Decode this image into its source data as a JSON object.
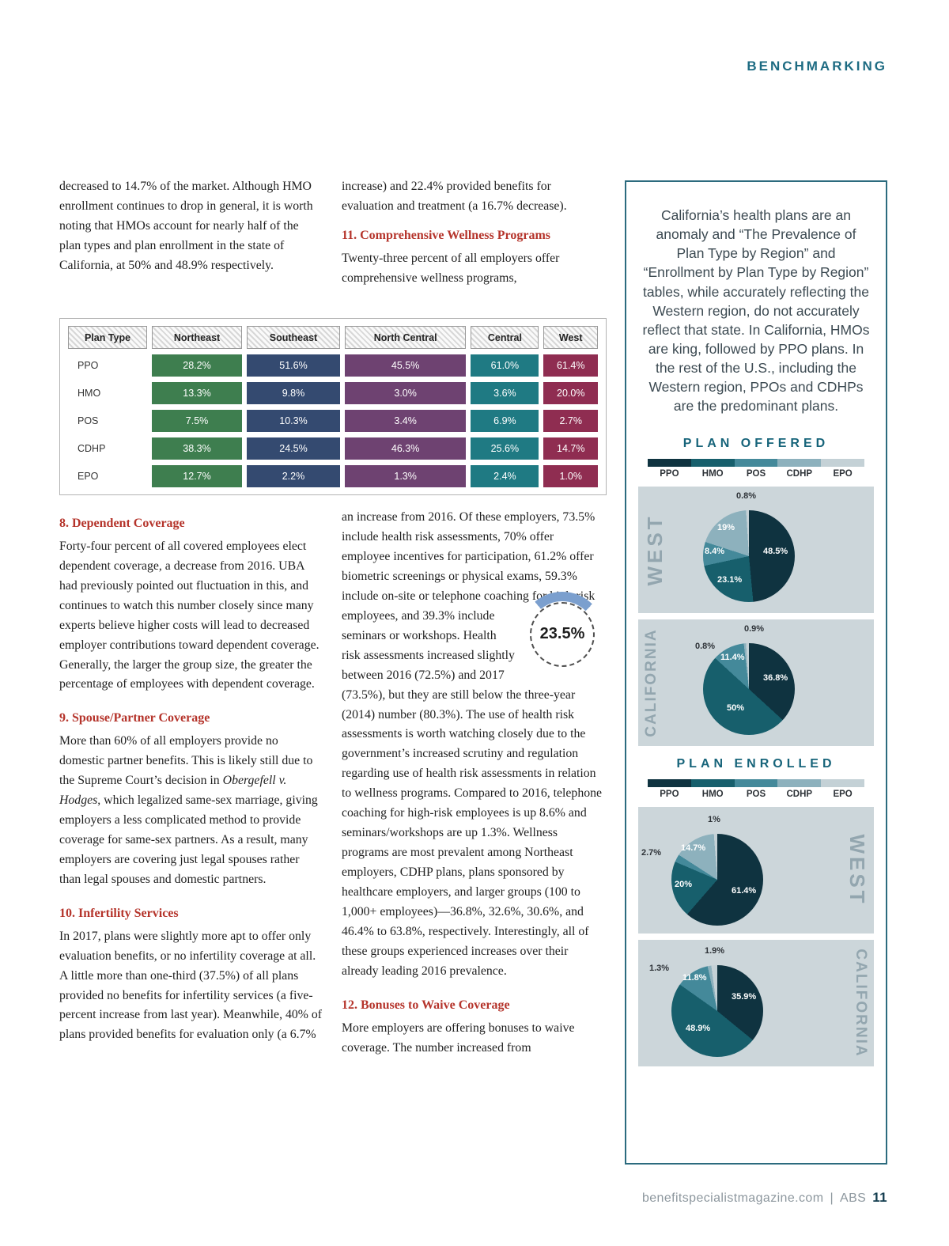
{
  "page": {
    "section_label": "BENCHMARKING",
    "footer": {
      "site": "benefitspecialistmagazine.com",
      "divider": "|",
      "brand": "ABS",
      "page_number": "11"
    }
  },
  "article": {
    "col1": {
      "continuation": "decreased to 14.7% of the market. Although HMO enrollment continues to drop in general, it is worth noting that HMOs account for nearly half of the plan types and plan enrollment in the state of California, at 50% and 48.9% respectively.",
      "section8": {
        "heading": "8. Dependent Coverage",
        "body": "Forty-four percent of all covered employees elect dependent coverage, a decrease from 2016. UBA had previously pointed out fluctuation in this, and continues to watch this number closely since many experts believe higher costs will lead to decreased employer contributions toward dependent coverage. Generally, the larger the group size, the greater the percentage of employees with dependent coverage."
      },
      "section9": {
        "heading": "9. Spouse/Partner Coverage",
        "body_before_italic": "More than 60% of all employers provide no domestic partner benefits. This is likely still due to the Supreme Court’s decision in ",
        "italic": "Obergefell v. Hodges",
        "body_after_italic": ", which legalized same-sex marriage, giving employers a less complicated method to provide coverage for same-sex partners. As a result, many employers are covering just legal spouses rather than legal spouses and domestic partners."
      },
      "section10": {
        "heading": "10. Infertility Services",
        "body": "In 2017, plans were slightly more apt to offer only evaluation benefits, or no infertility coverage at all. A little more than one-third (37.5%) of all plans provided no benefits for infertility services (a five-percent increase from last year). Meanwhile, 40% of plans provided benefits for evaluation only (a 6.7%"
      }
    },
    "col2": {
      "continuation": "increase) and 22.4% provided benefits for evaluation and treatment (a 16.7% decrease).",
      "section11": {
        "heading": "11. Comprehensive Wellness Programs",
        "body_intro": "Twenty-three percent of all employers offer comprehensive wellness programs,",
        "body_part1": "an increase from 2016. Of these employers, 73.5% include health risk assessments, 70% offer employee incentives for participation, 61.2% offer biometric screenings or physical exams, 59.3% include on-site",
        "body_part2": "or telephone coaching for high-risk employees, and 39.3% include seminars or workshops. Health risk assessments increased slightly between 2016 (72.5%) and 2017 (73.5%), but they are still below the three-year (2014) number (80.3%). The use of health risk assessments is worth watching closely due to the government’s increased scrutiny and regulation regarding use of health risk assessments in relation to wellness programs. Compared to 2016, telephone coaching for high-risk employees is up 8.6% and seminars/workshops are up 1.3%. Wellness programs are most prevalent among Northeast employers, CDHP plans, plans sponsored by healthcare employers, and larger groups (100 to 1,000+ employees)—36.8%, 32.6%, 30.6%, and 46.4% to 63.8%, respectively. Interestingly, all of these groups experienced increases over their already leading 2016 prevalence."
      },
      "section12": {
        "heading": "12. Bonuses to Waive Coverage",
        "body": "More employers are offering bonuses to waive coverage. The number increased from"
      }
    }
  },
  "region_table": {
    "headers": [
      "Plan Type",
      "Northeast",
      "Southeast",
      "North Central",
      "Central",
      "West"
    ],
    "rows": [
      {
        "plan": "PPO",
        "values": [
          "28.2%",
          "51.6%",
          "45.5%",
          "61.0%",
          "61.4%"
        ]
      },
      {
        "plan": "HMO",
        "values": [
          "13.3%",
          "9.8%",
          "3.0%",
          "3.6%",
          "20.0%"
        ]
      },
      {
        "plan": "POS",
        "values": [
          "7.5%",
          "10.3%",
          "3.4%",
          "6.9%",
          "2.7%"
        ]
      },
      {
        "plan": "CDHP",
        "values": [
          "38.3%",
          "24.5%",
          "46.3%",
          "25.6%",
          "14.7%"
        ]
      },
      {
        "plan": "EPO",
        "values": [
          "12.7%",
          "2.2%",
          "1.3%",
          "2.4%",
          "1.0%"
        ]
      }
    ],
    "region_colors": [
      "#3e7e4f",
      "#344a70",
      "#6e4271",
      "#1f7a83",
      "#8f2d51"
    ]
  },
  "sidebar": {
    "callout": "California’s health plans are an anomaly and “The Prevalence of Plan Type by Region” and “Enrollment by Plan Type by Region” tables, while accurately reflecting the Western region, do not accurately reflect that state. In California, HMOs are king, followed by PPO plans. In the rest of the U.S., including the Western region, PPOs and CDHPs are the predominant plans.",
    "offered_title": "PLAN OFFERED",
    "enrolled_title": "PLAN ENROLLED",
    "plan_legend": [
      "PPO",
      "HMO",
      "POS",
      "CDHP",
      "EPO"
    ],
    "palette_order": [
      "PPO",
      "HMO",
      "POS",
      "CDHP",
      "EPO"
    ],
    "palette": {
      "PPO": "#0f3340",
      "HMO": "#175f6c",
      "POS": "#44899a",
      "CDHP": "#8db1bd",
      "EPO": "#c4d1d6"
    }
  },
  "wellness_donut": {
    "type": "donut",
    "value_label": "23.5%",
    "percent": 23.5,
    "arc_color": "#7b9fce"
  },
  "chart_data": [
    {
      "type": "pie",
      "group": "PLAN OFFERED",
      "region": "WEST",
      "series_labels": [
        "PPO",
        "HMO",
        "POS",
        "CDHP",
        "EPO"
      ],
      "values": [
        48.5,
        23.1,
        8.4,
        19,
        0.8
      ],
      "labels": [
        "48.5%",
        "23.1%",
        "8.4%",
        "19%",
        "0.8%"
      ],
      "label_on_dark": [
        true,
        true,
        true,
        true,
        false
      ],
      "label_pos": [
        [
          158,
          76
        ],
        [
          100,
          112
        ],
        [
          84,
          76
        ],
        [
          100,
          46
        ],
        [
          124,
          6
        ]
      ],
      "pie_pos": [
        82,
        30
      ]
    },
    {
      "type": "pie",
      "group": "PLAN OFFERED",
      "region": "CALIFORNIA",
      "series_labels": [
        "PPO",
        "HMO",
        "POS",
        "CDHP",
        "EPO"
      ],
      "values": [
        36.8,
        50,
        11.4,
        0.8,
        0.9
      ],
      "labels": [
        "36.8%",
        "50%",
        "11.4%",
        "0.8%",
        "0.9%"
      ],
      "label_on_dark": [
        true,
        true,
        true,
        false,
        false
      ],
      "label_pos": [
        [
          158,
          68
        ],
        [
          112,
          106
        ],
        [
          104,
          42
        ],
        [
          72,
          28
        ],
        [
          134,
          6
        ]
      ],
      "pie_pos": [
        82,
        30
      ]
    },
    {
      "type": "pie",
      "group": "PLAN ENROLLED",
      "region": "WEST",
      "series_labels": [
        "PPO",
        "HMO",
        "POS",
        "CDHP",
        "EPO"
      ],
      "values": [
        61.4,
        20,
        2.7,
        14.7,
        1.0
      ],
      "labels": [
        "61.4%",
        "20%",
        "2.7%",
        "14.7%",
        "1%"
      ],
      "label_on_dark": [
        true,
        true,
        false,
        true,
        false
      ],
      "label_pos": [
        [
          118,
          100
        ],
        [
          46,
          92
        ],
        [
          4,
          52
        ],
        [
          54,
          46
        ],
        [
          88,
          10
        ]
      ],
      "pie_pos": [
        42,
        34
      ]
    },
    {
      "type": "pie",
      "group": "PLAN ENROLLED",
      "region": "CALIFORNIA",
      "series_labels": [
        "PPO",
        "HMO",
        "POS",
        "CDHP",
        "EPO"
      ],
      "values": [
        35.9,
        48.9,
        11.8,
        1.3,
        1.9
      ],
      "labels": [
        "35.9%",
        "48.9%",
        "11.8%",
        "1.3%",
        "1.9%"
      ],
      "label_on_dark": [
        true,
        true,
        true,
        false,
        false
      ],
      "label_pos": [
        [
          118,
          66
        ],
        [
          60,
          106
        ],
        [
          56,
          42
        ],
        [
          14,
          30
        ],
        [
          84,
          8
        ]
      ],
      "pie_pos": [
        42,
        32
      ]
    }
  ]
}
